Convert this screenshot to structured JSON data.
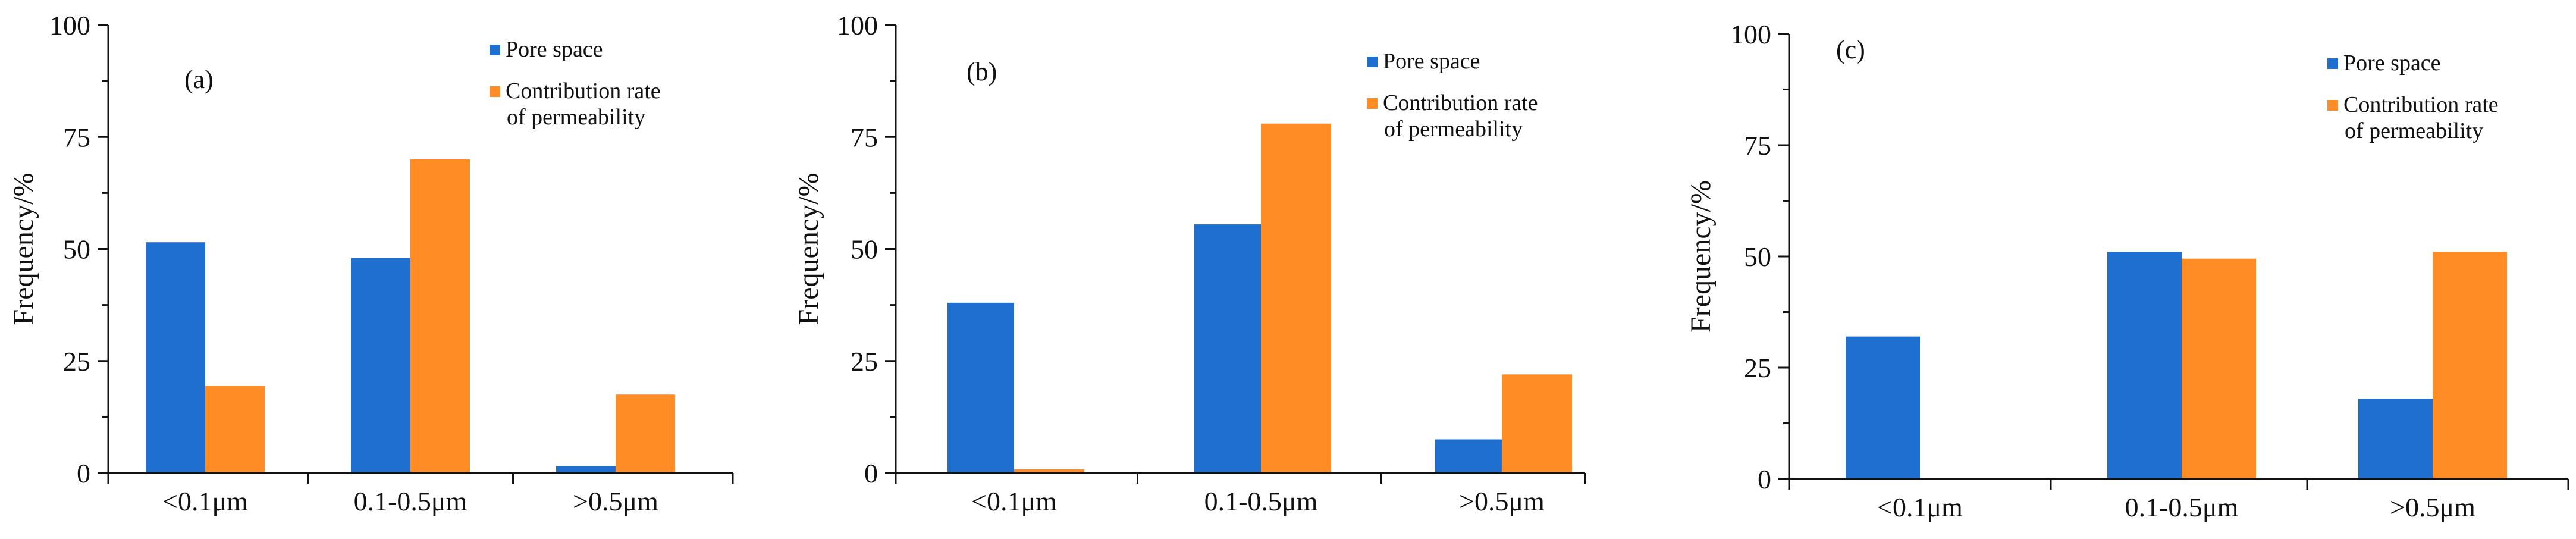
{
  "colors": {
    "pore_space": "#1f6fd1",
    "contribution": "#ff8c24"
  },
  "chart_data": [
    {
      "type": "bar",
      "panel_label": "(a)",
      "categories": [
        "<0.1μm",
        "0.1-0.5μm",
        ">0.5μm"
      ],
      "series": [
        {
          "name": "Pore space",
          "values": [
            51.5,
            48,
            1.5
          ]
        },
        {
          "name": "Contribution rate of permeability",
          "values": [
            19.5,
            70,
            17.5
          ]
        }
      ],
      "legend": [
        {
          "lines": [
            "Pore space"
          ]
        },
        {
          "lines": [
            "Contribution rate",
            "of permeability"
          ]
        }
      ],
      "ylabel": "Frequency/%",
      "ylim": [
        0,
        100
      ],
      "yticks": [
        "0",
        "25",
        "50",
        "75",
        "100"
      ]
    },
    {
      "type": "bar",
      "panel_label": "(b)",
      "categories": [
        "<0.1μm",
        "0.1-0.5μm",
        ">0.5μm"
      ],
      "series": [
        {
          "name": "Pore space",
          "values": [
            38,
            55.5,
            7.5
          ]
        },
        {
          "name": "Contribution rate of permeability",
          "values": [
            0.8,
            78,
            22
          ]
        }
      ],
      "legend": [
        {
          "lines": [
            "Pore space"
          ]
        },
        {
          "lines": [
            "Contribution rate",
            "of permeability"
          ]
        }
      ],
      "ylabel": "Frequency/%",
      "ylim": [
        0,
        100
      ],
      "yticks": [
        "0",
        "25",
        "50",
        "75",
        "100"
      ]
    },
    {
      "type": "bar",
      "panel_label": "(c)",
      "categories": [
        "<0.1μm",
        "0.1-0.5μm",
        ">0.5μm"
      ],
      "series": [
        {
          "name": "Pore space",
          "values": [
            32,
            51,
            18
          ]
        },
        {
          "name": "Contribution rate of permeability",
          "values": [
            0,
            49.5,
            51
          ]
        }
      ],
      "legend": [
        {
          "lines": [
            "Pore space"
          ]
        },
        {
          "lines": [
            "Contribution rate",
            "of permeability"
          ]
        }
      ],
      "ylabel": "Frequency/%",
      "ylim": [
        0,
        100
      ],
      "yticks": [
        "0",
        "25",
        "50",
        "75",
        "100"
      ]
    }
  ]
}
